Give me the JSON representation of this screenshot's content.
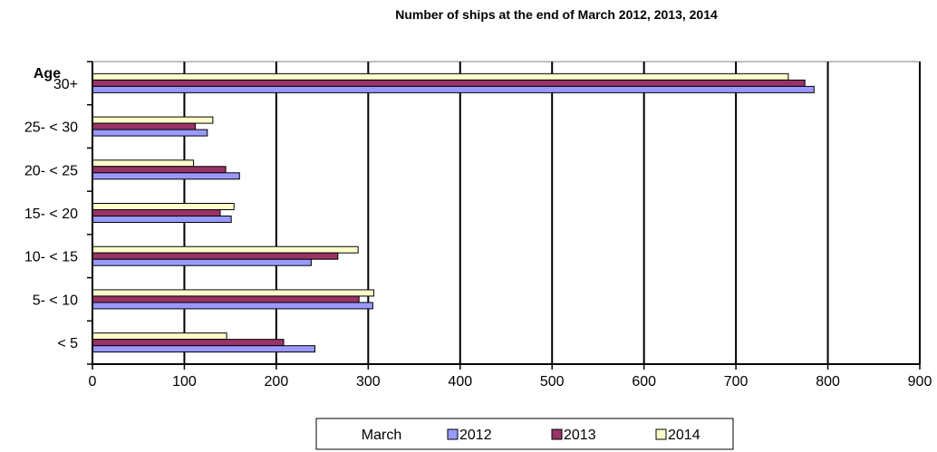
{
  "chart_data": {
    "type": "bar",
    "orientation": "horizontal",
    "title": "Number of ships at the end of March 2012, 2013, 2014",
    "ylabel": "Age",
    "xlabel": "",
    "categories": [
      "30+",
      "25- < 30",
      "20- < 25",
      "15- < 20",
      "10- < 15",
      "5- < 10",
      "<  5"
    ],
    "x_ticks": [
      "0",
      "100",
      "200",
      "300",
      "400",
      "500",
      "600",
      "700",
      "800",
      "900"
    ],
    "xlim": [
      0,
      900
    ],
    "grid": "vertical",
    "legend": {
      "placement": "bottom",
      "title": "March"
    },
    "series": [
      {
        "name": "2014",
        "color": "#ffffcc",
        "values": [
          757,
          131,
          110,
          154,
          289,
          306,
          146
        ]
      },
      {
        "name": "2013",
        "color": "#993366",
        "values": [
          775,
          112,
          145,
          139,
          267,
          290,
          208
        ]
      },
      {
        "name": "2012",
        "color": "#9999ff",
        "values": [
          785,
          125,
          160,
          151,
          238,
          305,
          242
        ]
      }
    ],
    "legend_order": [
      "2012",
      "2013",
      "2014"
    ]
  }
}
